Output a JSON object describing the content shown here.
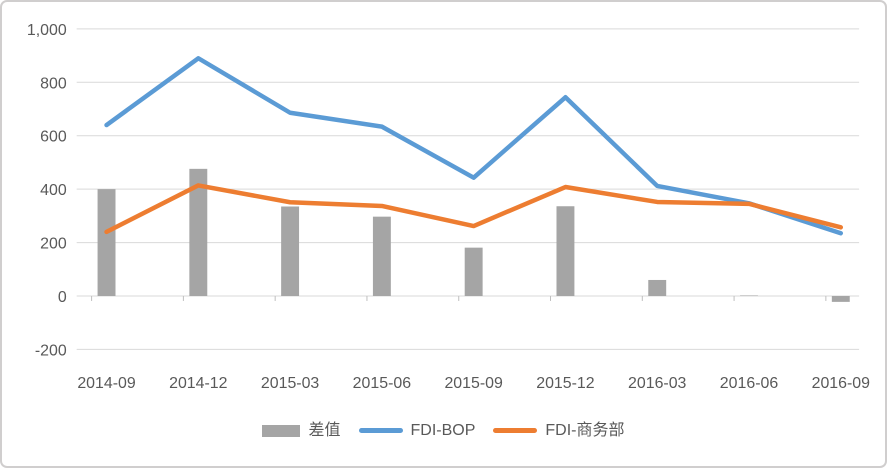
{
  "chart_data": {
    "type": "combo",
    "title": "",
    "xlabel": "",
    "ylabel": "",
    "categories": [
      "2014-09",
      "2014-12",
      "2015-03",
      "2015-06",
      "2015-09",
      "2015-12",
      "2016-03",
      "2016-06",
      "2016-09"
    ],
    "series": [
      {
        "name": "差值",
        "type": "bar",
        "color": "#A5A5A5",
        "values": [
          400,
          476,
          335,
          297,
          181,
          336,
          60,
          2,
          -22
        ]
      },
      {
        "name": "FDI-BOP",
        "type": "line",
        "color": "#5B9BD5",
        "values": [
          640,
          890,
          686,
          634,
          443,
          744,
          412,
          347,
          235
        ]
      },
      {
        "name": "FDI-商务部",
        "type": "line",
        "color": "#ED7D31",
        "values": [
          240,
          414,
          351,
          337,
          262,
          408,
          352,
          345,
          257
        ]
      }
    ],
    "ylim": [
      -200,
      1000
    ],
    "y_tick_step": 200,
    "y_tick_labels": [
      "1,000",
      "800",
      "600",
      "400",
      "200",
      "0",
      "-200"
    ],
    "grid": true,
    "legend_position": "bottom"
  },
  "styles": {
    "background": "#FFFFFF",
    "grid_color": "#D9D9D9",
    "axis_color": "#BFBFBF",
    "text_color": "#595959",
    "frame_border_color": "#D0CECE"
  }
}
